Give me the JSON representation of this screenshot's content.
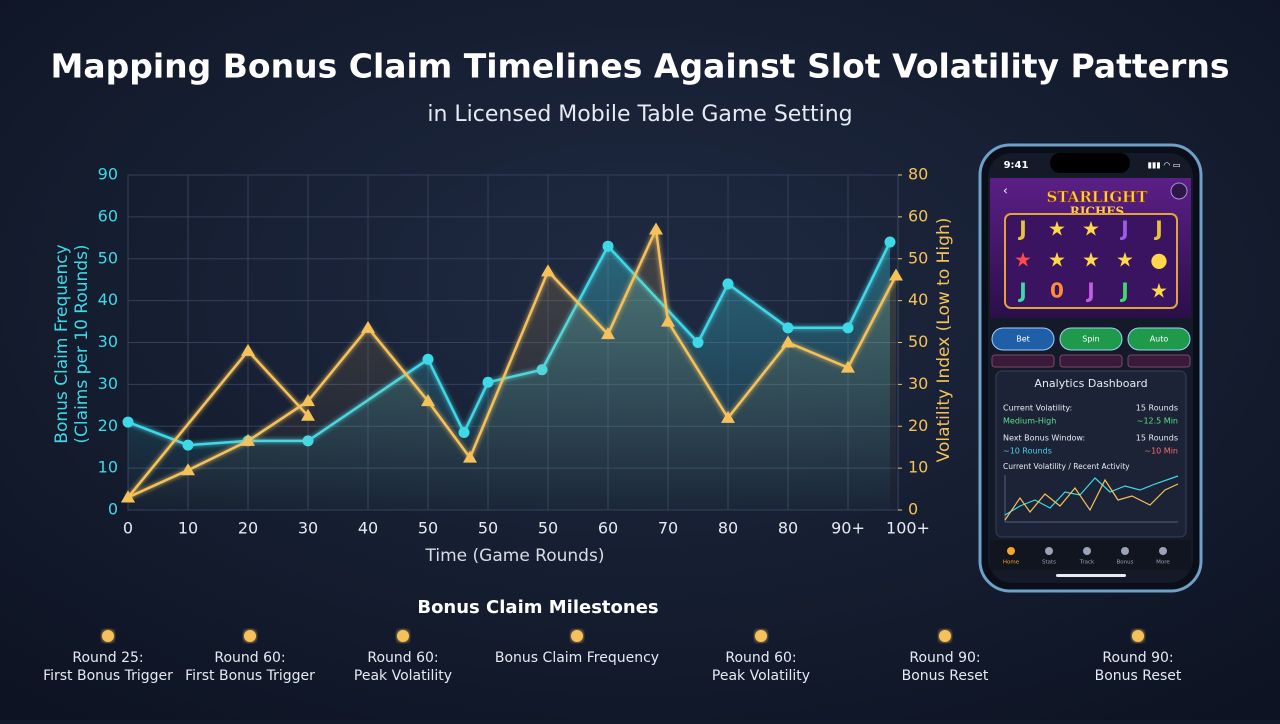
{
  "chart_data": {
    "type": "line",
    "title": "Mapping Bonus Claim Timelines Against Slot Volatility Patterns",
    "subtitle": "in Licensed Mobile Table Game Setting",
    "x_label": "Time (Game Rounds)",
    "y_label": [
      "Bonus Claim Frequency",
      "(Claims per 10 Rounds)"
    ],
    "y2_label": "Volatility Index (Low to High)",
    "xlim": [
      0,
      130
    ],
    "xticks": [
      0,
      10,
      20,
      30,
      40,
      50,
      {
        "value": 60,
        "label": "50"
      },
      {
        "value": 70,
        "label": "50"
      },
      {
        "value": 80,
        "label": "60"
      },
      {
        "value": 90,
        "label": "70"
      },
      {
        "value": 100,
        "label": "80"
      },
      {
        "value": 110,
        "label": "80"
      },
      {
        "value": 120,
        "label": "90+"
      },
      {
        "value": 130,
        "label": "100+"
      }
    ],
    "ylim": [
      0,
      80
    ],
    "yticks": [
      0,
      10,
      20,
      30,
      {
        "value": 40,
        "label": "30"
      },
      {
        "value": 50,
        "label": "40"
      },
      {
        "value": 60,
        "label": "50"
      },
      {
        "value": 70,
        "label": "60"
      },
      {
        "value": 80,
        "label": "90"
      }
    ],
    "y2lim": [
      0,
      80
    ],
    "y2ticks": [
      0,
      10,
      20,
      30,
      {
        "value": 40,
        "label": "50"
      },
      {
        "value": 50,
        "label": "40"
      },
      {
        "value": 60,
        "label": "50"
      },
      {
        "value": 70,
        "label": "60"
      },
      80
    ],
    "grid": true,
    "series": [
      {
        "color": "#3fd8e6",
        "marker": "circle",
        "fill": true,
        "x": [
          0,
          10,
          20,
          30,
          50,
          56,
          60,
          69,
          80,
          95,
          100,
          110,
          120,
          127
        ],
        "values": [
          21,
          15.5,
          16.5,
          16.5,
          36,
          18.5,
          30.5,
          33.5,
          63,
          40,
          54,
          43.5,
          43.5,
          64
        ]
      },
      {
        "color": "#f5c15a",
        "marker": "triangle",
        "axis": "y2",
        "fill": true,
        "x": [
          0,
          10,
          20,
          30,
          40,
          50,
          57,
          70,
          80,
          88,
          90,
          100,
          110,
          120,
          128
        ],
        "values": [
          3,
          9.5,
          16.5,
          26,
          43.5,
          26,
          12.5,
          57,
          42,
          67,
          45,
          22,
          40,
          34,
          56
        ]
      },
      {
        "color": "#f5c15a",
        "marker": "triangle",
        "axis": "y2",
        "x": [
          0,
          20,
          30
        ],
        "values": [
          3,
          38,
          22.5
        ]
      }
    ]
  },
  "milestones": {
    "title": "Bonus Claim Milestones",
    "items": [
      {
        "label": "Round 25:",
        "detail": "First Bonus Trigger"
      },
      {
        "label": "Round 60:",
        "detail": "First Bonus Trigger"
      },
      {
        "label": "Round 60:",
        "detail": "Peak Volatility"
      },
      {
        "label": "Bonus Claim Frequency"
      },
      {
        "label": "Round 60:",
        "detail": "Peak Volatility"
      },
      {
        "label": "Round 90:",
        "detail": "Bonus Reset"
      },
      {
        "label": "Round 90:",
        "detail": "Bonus Reset"
      }
    ]
  },
  "phone": {
    "time": "9:41",
    "game": [
      "STARLIGHT",
      "RICHES"
    ],
    "buttons": [
      "Bet",
      "Spin",
      "Auto"
    ],
    "dashboard": {
      "title": "Analytics Dashboard",
      "rows": [
        {
          "label": "Current Volatility:",
          "value": "Medium-High",
          "right": "15 Rounds",
          "right_sub": "~12.5 Min"
        },
        {
          "label": "Next Bonus Window:",
          "value": "~10 Rounds",
          "right": "15 Rounds",
          "right_sub": "~10 Min"
        }
      ],
      "chart_title": "Current Volatility / Recent Activity"
    },
    "nav": [
      "Home",
      "Stats",
      "Track",
      "Bonus",
      "More"
    ]
  }
}
